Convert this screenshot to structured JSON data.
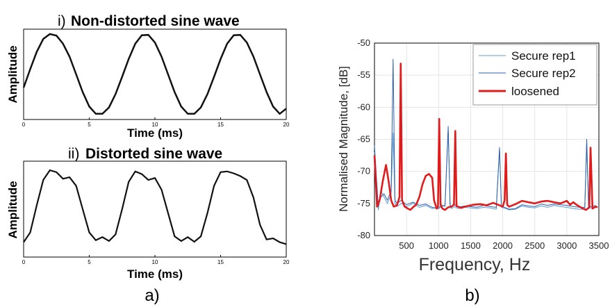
{
  "panel_a": {
    "label": "a)",
    "top": {
      "roman": "i)",
      "title": "Non-distorted sine wave",
      "ylabel": "Amplitude",
      "xlabel": "Time (ms)",
      "xticks": [
        "0",
        "5",
        "10",
        "15",
        "20"
      ]
    },
    "bottom": {
      "roman": "ii)",
      "title": "Distorted sine wave",
      "ylabel": "Amplitude",
      "xlabel": "Time (ms)",
      "xticks": [
        "0",
        "5",
        "10",
        "15",
        "20"
      ]
    }
  },
  "panel_b": {
    "label": "b)",
    "xlabel": "Frequency, Hz",
    "ylabel": "Normalised Magnitude, [dB]",
    "xticks": [
      "500",
      "1000",
      "1500",
      "2000",
      "2500",
      "3000",
      "3500"
    ],
    "yticks": [
      "-50",
      "-55",
      "-60",
      "-65",
      "-70",
      "-75",
      "-80"
    ],
    "legend": [
      "Secure rep1",
      "Secure rep2",
      "loosened"
    ]
  },
  "colors": {
    "rep1": "#5b9bd5",
    "rep2": "#2e5fa8",
    "loosened": "#e01b1b",
    "axis": "#000000",
    "grid": "#e5e5e5"
  },
  "chart_data": [
    {
      "type": "line",
      "title": "Non-distorted sine wave",
      "xlabel": "Time (ms)",
      "ylabel": "Amplitude",
      "xlim": [
        0,
        20
      ],
      "series": [
        {
          "x": [
            0,
            0.5,
            1,
            1.5,
            2,
            2.5,
            3,
            3.5,
            4,
            4.5,
            5,
            5.5,
            6,
            6.5,
            7,
            7.5,
            8,
            8.5,
            9,
            9.5,
            10,
            10.5,
            11,
            11.5,
            12,
            12.5,
            13,
            13.5,
            14,
            14.5,
            15,
            15.5,
            16,
            16.5,
            17,
            17.5,
            18,
            18.5,
            19,
            19.5,
            20
          ],
          "y": [
            -0.33,
            0.13,
            0.56,
            0.88,
            1.0,
            0.96,
            0.76,
            0.44,
            0.0,
            -0.44,
            -0.8,
            -0.98,
            -0.98,
            -0.82,
            -0.49,
            -0.06,
            0.38,
            0.76,
            0.97,
            0.98,
            0.79,
            0.44,
            0.0,
            -0.44,
            -0.8,
            -0.98,
            -0.98,
            -0.82,
            -0.49,
            -0.06,
            0.38,
            0.76,
            0.97,
            0.98,
            0.79,
            0.44,
            0.0,
            -0.44,
            -0.8,
            -0.98,
            -0.85
          ]
        }
      ]
    },
    {
      "type": "line",
      "title": "Distorted sine wave",
      "xlabel": "Time (ms)",
      "ylabel": "Amplitude",
      "xlim": [
        0,
        20
      ],
      "series": [
        {
          "x": [
            0,
            0.5,
            1,
            1.5,
            2,
            2.5,
            3,
            3.5,
            4,
            4.5,
            5,
            5.5,
            6,
            6.5,
            7,
            7.5,
            8,
            8.5,
            9,
            9.5,
            10,
            10.5,
            11,
            11.5,
            12,
            12.5,
            13,
            13.5,
            14,
            14.5,
            15,
            15.5,
            16,
            16.5,
            17,
            17.5,
            18,
            18.5,
            19,
            19.5,
            20
          ],
          "y": [
            -0.85,
            -0.6,
            0.1,
            0.75,
            1.0,
            0.95,
            0.78,
            0.82,
            0.6,
            0.0,
            -0.6,
            -0.8,
            -0.72,
            -0.82,
            -0.65,
            0.0,
            0.7,
            0.97,
            0.9,
            0.75,
            0.8,
            0.5,
            -0.1,
            -0.7,
            -0.82,
            -0.72,
            -0.84,
            -0.7,
            -0.1,
            0.6,
            0.95,
            0.97,
            0.92,
            0.85,
            0.75,
            0.3,
            -0.4,
            -0.78,
            -0.75,
            -0.85,
            -0.9
          ]
        }
      ]
    },
    {
      "type": "line",
      "xlabel": "Frequency, Hz",
      "ylabel": "Normalised Magnitude, [dB]",
      "xlim": [
        0,
        3500
      ],
      "ylim": [
        -80,
        -50
      ],
      "grid": true,
      "legend_position": "top-right",
      "series": [
        {
          "name": "Secure rep1",
          "x": [
            0,
            60,
            100,
            150,
            200,
            260,
            290,
            320,
            350,
            420,
            500,
            600,
            700,
            800,
            900,
            1000,
            1050,
            1100,
            1150,
            1180,
            1200,
            1250,
            1300,
            1400,
            1500,
            1600,
            1700,
            1800,
            1900,
            1950,
            1980,
            2050,
            2100,
            2200,
            2300,
            2400,
            2500,
            2600,
            2700,
            2800,
            2900,
            3000,
            3100,
            3200,
            3280,
            3310,
            3340,
            3400,
            3450
          ],
          "y": [
            -67,
            -76,
            -73,
            -74,
            -75,
            -73.5,
            -64,
            -75,
            -75.5,
            -75,
            -75.5,
            -75,
            -75.6,
            -75.3,
            -75.8,
            -75.6,
            -75.2,
            -75.5,
            -63.5,
            -75.4,
            -75.8,
            -75.5,
            -75.8,
            -75.6,
            -75.7,
            -75.8,
            -75.6,
            -75.7,
            -75.9,
            -66.5,
            -75.6,
            -75.8,
            -76.0,
            -75.9,
            -75.4,
            -75.6,
            -75.7,
            -75.4,
            -75.6,
            -75.3,
            -75.5,
            -75.6,
            -75.8,
            -75.9,
            -75.9,
            -65.5,
            -75.8,
            -75.6,
            -75.5
          ]
        },
        {
          "name": "Secure rep2",
          "x": [
            0,
            60,
            100,
            150,
            200,
            260,
            290,
            320,
            350,
            420,
            500,
            600,
            700,
            800,
            900,
            1000,
            1050,
            1100,
            1150,
            1180,
            1200,
            1250,
            1300,
            1400,
            1500,
            1600,
            1700,
            1800,
            1900,
            1950,
            1980,
            2050,
            2100,
            2200,
            2300,
            2400,
            2500,
            2600,
            2700,
            2800,
            2900,
            3000,
            3100,
            3200,
            3280,
            3310,
            3340,
            3400,
            3450
          ],
          "y": [
            -66,
            -75.5,
            -74,
            -73.5,
            -74.5,
            -73,
            -52.5,
            -74.5,
            -75,
            -74.5,
            -75.2,
            -74.8,
            -75.3,
            -75.1,
            -75.6,
            -75.8,
            -75.4,
            -75.3,
            -63,
            -75.2,
            -75.6,
            -75.2,
            -75.6,
            -75.4,
            -75.5,
            -75.6,
            -75.3,
            -75.5,
            -75.6,
            -66.3,
            -75.4,
            -75.7,
            -75.9,
            -75.8,
            -75.2,
            -75.4,
            -75.5,
            -75.1,
            -75.3,
            -75.1,
            -75.2,
            -75.3,
            -75.5,
            -75.6,
            -75.6,
            -65,
            -75.6,
            -75.4,
            -75.3
          ]
        },
        {
          "name": "loosened",
          "x": [
            0,
            40,
            80,
            130,
            180,
            220,
            260,
            300,
            350,
            390,
            410,
            430,
            470,
            520,
            560,
            600,
            650,
            700,
            750,
            800,
            850,
            900,
            930,
            970,
            990,
            1010,
            1030,
            1060,
            1100,
            1150,
            1200,
            1240,
            1260,
            1280,
            1350,
            1450,
            1550,
            1650,
            1750,
            1850,
            1950,
            2000,
            2030,
            2050,
            2070,
            2100,
            2200,
            2300,
            2400,
            2500,
            2600,
            2700,
            2800,
            2900,
            3000,
            3050,
            3100,
            3150,
            3200,
            3250,
            3300,
            3350,
            3370,
            3400,
            3450,
            3480
          ],
          "y": [
            -67.5,
            -75.5,
            -74.5,
            -71.5,
            -69,
            -71.5,
            -74.5,
            -75.5,
            -75.3,
            -74,
            -53.2,
            -74.5,
            -75.5,
            -75.8,
            -76,
            -75.6,
            -75.2,
            -74,
            -72,
            -70.7,
            -70.4,
            -71,
            -74.5,
            -75.8,
            -75.5,
            -61.8,
            -75.2,
            -75.8,
            -76,
            -75.6,
            -75.5,
            -75.2,
            -63.7,
            -75.4,
            -75.7,
            -75.4,
            -75.2,
            -75.1,
            -75.3,
            -74.9,
            -75.3,
            -75.5,
            -74.5,
            -67.2,
            -75.2,
            -75.5,
            -75.1,
            -74.6,
            -74.8,
            -75.0,
            -74.7,
            -74.6,
            -74.8,
            -75.0,
            -74.6,
            -75.2,
            -74.8,
            -75.2,
            -75.5,
            -75.8,
            -76,
            -75.6,
            -66.3,
            -75.8,
            -75.5,
            -75.6
          ]
        }
      ]
    }
  ]
}
